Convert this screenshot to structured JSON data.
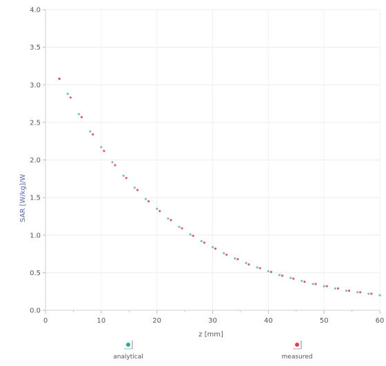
{
  "chart_data": {
    "type": "scatter",
    "xlabel": "z [mm]",
    "ylabel": "SAR [W/kg]/W",
    "xlim": [
      0,
      60
    ],
    "ylim": [
      0,
      4.0
    ],
    "x_ticks": [
      "0",
      "10",
      "20",
      "30",
      "40",
      "50",
      "60"
    ],
    "y_ticks": [
      "0.0",
      "0.5",
      "1.0",
      "1.5",
      "2.0",
      "2.5",
      "3.0",
      "3.5",
      "4.0"
    ],
    "grid": true,
    "legend_position": "bottom",
    "series": [
      {
        "name": "analytical",
        "color": "#2aa59a",
        "marker": "circle",
        "x": [
          2.5,
          4,
          6,
          8,
          10,
          12,
          14,
          16,
          18,
          20,
          22,
          24,
          26,
          28,
          30,
          32,
          34,
          36,
          38,
          40,
          42,
          44,
          46,
          48,
          50,
          52,
          54,
          56,
          58,
          60
        ],
        "y": [
          3.08,
          2.88,
          2.61,
          2.38,
          2.17,
          1.97,
          1.79,
          1.63,
          1.48,
          1.35,
          1.22,
          1.11,
          1.01,
          0.92,
          0.84,
          0.76,
          0.69,
          0.63,
          0.57,
          0.52,
          0.47,
          0.43,
          0.39,
          0.35,
          0.32,
          0.29,
          0.26,
          0.24,
          0.22,
          0.2
        ]
      },
      {
        "name": "measured",
        "color": "#e0404a",
        "marker": "circle",
        "x": [
          2.5,
          4.5,
          6.5,
          8.5,
          10.5,
          12.5,
          14.5,
          16.5,
          18.5,
          20.5,
          22.5,
          24.5,
          26.5,
          28.5,
          30.5,
          32.5,
          34.5,
          36.5,
          38.5,
          40.5,
          42.5,
          44.5,
          46.5,
          48.5,
          50.5,
          52.5,
          54.5,
          56.5,
          58.5
        ],
        "y": [
          3.08,
          2.83,
          2.57,
          2.34,
          2.12,
          1.93,
          1.76,
          1.6,
          1.45,
          1.32,
          1.2,
          1.09,
          0.99,
          0.9,
          0.82,
          0.74,
          0.68,
          0.61,
          0.56,
          0.51,
          0.46,
          0.42,
          0.38,
          0.35,
          0.32,
          0.29,
          0.26,
          0.24,
          0.22
        ]
      }
    ]
  }
}
